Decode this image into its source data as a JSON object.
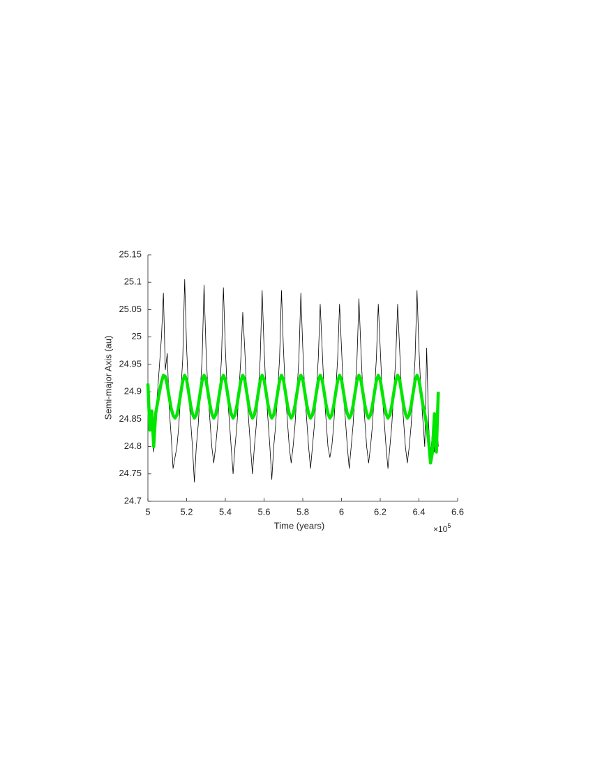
{
  "chart_data": {
    "type": "line",
    "xlabel": "Time (years)",
    "ylabel": "Semi-major Axis (au)",
    "x_multiplier": {
      "base": "×10",
      "exponent": "5"
    },
    "x": [
      5,
      5.01,
      5.02,
      5.03,
      5.04,
      5.05,
      5.06,
      5.07,
      5.08,
      5.09,
      5.1,
      5.11,
      5.12,
      5.13,
      5.14,
      5.15,
      5.16,
      5.17,
      5.18,
      5.19,
      5.2,
      5.21,
      5.22,
      5.23,
      5.24,
      5.25,
      5.26,
      5.27,
      5.28,
      5.29,
      5.3,
      5.31,
      5.32,
      5.33,
      5.34,
      5.35,
      5.36,
      5.37,
      5.38,
      5.39,
      5.4,
      5.41,
      5.42,
      5.43,
      5.44,
      5.45,
      5.46,
      5.47,
      5.48,
      5.49,
      5.5,
      5.51,
      5.52,
      5.53,
      5.54,
      5.55,
      5.56,
      5.57,
      5.58,
      5.59,
      5.6,
      5.61,
      5.62,
      5.63,
      5.64,
      5.65,
      5.66,
      5.67,
      5.68,
      5.69,
      5.7,
      5.71,
      5.72,
      5.73,
      5.74,
      5.75,
      5.76,
      5.77,
      5.78,
      5.79,
      5.8,
      5.81,
      5.82,
      5.83,
      5.84,
      5.85,
      5.86,
      5.87,
      5.88,
      5.89,
      5.9,
      5.91,
      5.92,
      5.93,
      5.94,
      5.95,
      5.96,
      5.97,
      5.98,
      5.99,
      6,
      6.01,
      6.02,
      6.03,
      6.04,
      6.05,
      6.06,
      6.07,
      6.08,
      6.09,
      6.1,
      6.11,
      6.12,
      6.13,
      6.14,
      6.15,
      6.16,
      6.17,
      6.18,
      6.19,
      6.2,
      6.21,
      6.22,
      6.23,
      6.24,
      6.25,
      6.26,
      6.27,
      6.28,
      6.29,
      6.3,
      6.31,
      6.32,
      6.33,
      6.34,
      6.35,
      6.36,
      6.37,
      6.38,
      6.39,
      6.4,
      6.41,
      6.42,
      6.43,
      6.44,
      6.45,
      6.46,
      6.47,
      6.48,
      6.49,
      6.5
    ],
    "series": [
      {
        "color": "#000000",
        "values": [
          24.88,
          24.86,
          24.84,
          24.79,
          24.85,
          24.9,
          24.95,
          25.0,
          25.08,
          24.94,
          24.97,
          24.87,
          24.82,
          24.76,
          24.78,
          24.8,
          24.84,
          24.9,
          24.96,
          25.105,
          24.98,
          24.9,
          24.85,
          24.8,
          24.735,
          24.8,
          24.84,
          24.9,
          24.96,
          25.095,
          24.98,
          24.9,
          24.85,
          24.8,
          24.77,
          24.8,
          24.84,
          24.9,
          24.96,
          25.09,
          24.98,
          24.9,
          24.85,
          24.8,
          24.75,
          24.8,
          24.84,
          24.9,
          24.96,
          25.045,
          24.98,
          24.9,
          24.85,
          24.8,
          24.75,
          24.8,
          24.84,
          24.9,
          24.96,
          25.085,
          24.98,
          24.9,
          24.85,
          24.8,
          24.74,
          24.8,
          24.84,
          24.9,
          24.96,
          25.085,
          24.98,
          24.9,
          24.85,
          24.8,
          24.77,
          24.8,
          24.84,
          24.9,
          24.96,
          25.08,
          24.98,
          24.9,
          24.85,
          24.8,
          24.76,
          24.8,
          24.84,
          24.9,
          24.96,
          25.06,
          24.98,
          24.9,
          24.85,
          24.8,
          24.78,
          24.8,
          24.84,
          24.9,
          24.96,
          25.06,
          24.98,
          24.9,
          24.85,
          24.8,
          24.76,
          24.8,
          24.84,
          24.9,
          24.96,
          25.07,
          24.98,
          24.9,
          24.85,
          24.8,
          24.77,
          24.8,
          24.84,
          24.9,
          24.96,
          25.06,
          24.98,
          24.9,
          24.85,
          24.8,
          24.76,
          24.8,
          24.84,
          24.9,
          24.96,
          25.06,
          24.98,
          24.9,
          24.85,
          24.8,
          24.77,
          24.8,
          24.84,
          24.9,
          24.96,
          25.085,
          24.98,
          24.9,
          24.85,
          24.8,
          24.98,
          24.84,
          24.78,
          24.83,
          24.79,
          24.86,
          24.8
        ]
      },
      {
        "color": "#00e600",
        "values": [
          24.915,
          24.83,
          24.865,
          24.8,
          24.86,
          24.88,
          24.9,
          24.918,
          24.93,
          24.928,
          24.912,
          24.89,
          24.87,
          24.857,
          24.852,
          24.858,
          24.875,
          24.898,
          24.92,
          24.93,
          24.922,
          24.9,
          24.877,
          24.86,
          24.852,
          24.858,
          24.875,
          24.898,
          24.92,
          24.93,
          24.922,
          24.9,
          24.877,
          24.86,
          24.852,
          24.858,
          24.875,
          24.898,
          24.92,
          24.93,
          24.922,
          24.9,
          24.877,
          24.86,
          24.852,
          24.858,
          24.875,
          24.898,
          24.92,
          24.93,
          24.922,
          24.9,
          24.877,
          24.86,
          24.852,
          24.858,
          24.875,
          24.898,
          24.92,
          24.93,
          24.922,
          24.9,
          24.877,
          24.86,
          24.852,
          24.858,
          24.875,
          24.898,
          24.92,
          24.93,
          24.922,
          24.9,
          24.877,
          24.86,
          24.852,
          24.858,
          24.875,
          24.898,
          24.92,
          24.93,
          24.922,
          24.9,
          24.877,
          24.86,
          24.852,
          24.858,
          24.875,
          24.898,
          24.92,
          24.93,
          24.922,
          24.9,
          24.877,
          24.86,
          24.852,
          24.858,
          24.875,
          24.898,
          24.92,
          24.93,
          24.922,
          24.9,
          24.877,
          24.86,
          24.852,
          24.858,
          24.875,
          24.898,
          24.92,
          24.93,
          24.922,
          24.9,
          24.877,
          24.86,
          24.852,
          24.858,
          24.875,
          24.898,
          24.92,
          24.93,
          24.922,
          24.9,
          24.877,
          24.86,
          24.852,
          24.858,
          24.875,
          24.898,
          24.92,
          24.93,
          24.922,
          24.9,
          24.877,
          24.86,
          24.852,
          24.858,
          24.875,
          24.898,
          24.92,
          24.93,
          24.922,
          24.9,
          24.877,
          24.86,
          24.84,
          24.81,
          24.77,
          24.79,
          24.86,
          24.79,
          24.9
        ]
      }
    ],
    "xlim": [
      5,
      6.6
    ],
    "xticks": [
      5,
      5.2,
      5.4,
      5.6,
      5.8,
      6,
      6.2,
      6.4,
      6.6
    ],
    "ylim": [
      24.7,
      25.15
    ],
    "yticks": [
      24.7,
      24.75,
      24.8,
      24.85,
      24.9,
      24.95,
      25,
      25.05,
      25.1,
      25.15
    ],
    "grid": false
  }
}
